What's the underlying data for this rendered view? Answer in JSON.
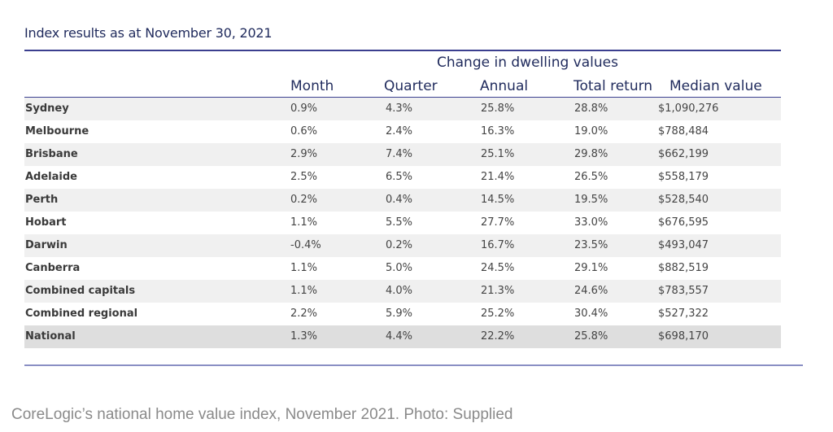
{
  "title": "Index results as at November 30, 2021",
  "group_header": "Change in dwelling values",
  "columns": {
    "month": "Month",
    "quarter": "Quarter",
    "annual": "Annual",
    "total_return": "Total return",
    "median_value": "Median value"
  },
  "rows": [
    {
      "region": "Sydney",
      "month": "0.9%",
      "quarter": "4.3%",
      "annual": "25.8%",
      "total_return": "28.8%",
      "median_value": "$1,090,276"
    },
    {
      "region": "Melbourne",
      "month": "0.6%",
      "quarter": "2.4%",
      "annual": "16.3%",
      "total_return": "19.0%",
      "median_value": "$788,484"
    },
    {
      "region": "Brisbane",
      "month": "2.9%",
      "quarter": "7.4%",
      "annual": "25.1%",
      "total_return": "29.8%",
      "median_value": "$662,199"
    },
    {
      "region": "Adelaide",
      "month": "2.5%",
      "quarter": "6.5%",
      "annual": "21.4%",
      "total_return": "26.5%",
      "median_value": "$558,179"
    },
    {
      "region": "Perth",
      "month": "0.2%",
      "quarter": "0.4%",
      "annual": "14.5%",
      "total_return": "19.5%",
      "median_value": "$528,540"
    },
    {
      "region": "Hobart",
      "month": "1.1%",
      "quarter": "5.5%",
      "annual": "27.7%",
      "total_return": "33.0%",
      "median_value": "$676,595"
    },
    {
      "region": "Darwin",
      "month": "-0.4%",
      "quarter": "0.2%",
      "annual": "16.7%",
      "total_return": "23.5%",
      "median_value": "$493,047"
    },
    {
      "region": "Canberra",
      "month": "1.1%",
      "quarter": "5.0%",
      "annual": "24.5%",
      "total_return": "29.1%",
      "median_value": "$882,519"
    },
    {
      "region": "Combined capitals",
      "month": "1.1%",
      "quarter": "4.0%",
      "annual": "21.3%",
      "total_return": "24.6%",
      "median_value": "$783,557"
    },
    {
      "region": "Combined regional",
      "month": "2.2%",
      "quarter": "5.9%",
      "annual": "25.2%",
      "total_return": "30.4%",
      "median_value": "$527,322"
    },
    {
      "region": "National",
      "month": "1.3%",
      "quarter": "4.4%",
      "annual": "22.2%",
      "total_return": "25.8%",
      "median_value": "$698,170"
    }
  ],
  "caption": "CoreLogic’s national home value index, November 2021. Photo: Supplied",
  "colors": {
    "heading": "#1f2a5c",
    "rule": "#3b3f8f",
    "shaded_row": "#f0f0f0",
    "national_row": "#dedede",
    "caption": "#8a8a8a"
  }
}
